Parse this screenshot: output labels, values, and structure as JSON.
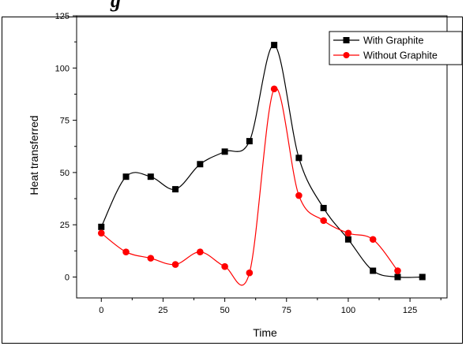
{
  "caption": {
    "text": "g"
  },
  "chart_data": {
    "type": "line",
    "title": "",
    "xlabel": "Time",
    "ylabel": "Heat transferred",
    "xlim": [
      -10,
      140
    ],
    "ylim": [
      -10,
      125
    ],
    "x_ticks": [
      0,
      25,
      50,
      75,
      100,
      125
    ],
    "y_ticks": [
      0,
      25,
      50,
      75,
      100,
      125
    ],
    "legend_position": "top-right",
    "series": [
      {
        "name": "With Graphite",
        "color": "#000000",
        "marker": "square",
        "x": [
          0,
          10,
          20,
          30,
          40,
          50,
          60,
          70,
          80,
          90,
          100,
          110,
          120,
          130
        ],
        "y": [
          24,
          48,
          48,
          42,
          54,
          60,
          65,
          111,
          57,
          33,
          18,
          3,
          0,
          0
        ]
      },
      {
        "name": "Without Graphite",
        "color": "#ff0000",
        "marker": "circle",
        "x": [
          0,
          10,
          20,
          30,
          40,
          50,
          60,
          70,
          80,
          90,
          100,
          110,
          120
        ],
        "y": [
          21,
          12,
          9,
          6,
          12,
          5,
          2,
          90,
          39,
          27,
          21,
          18,
          3
        ]
      }
    ]
  }
}
